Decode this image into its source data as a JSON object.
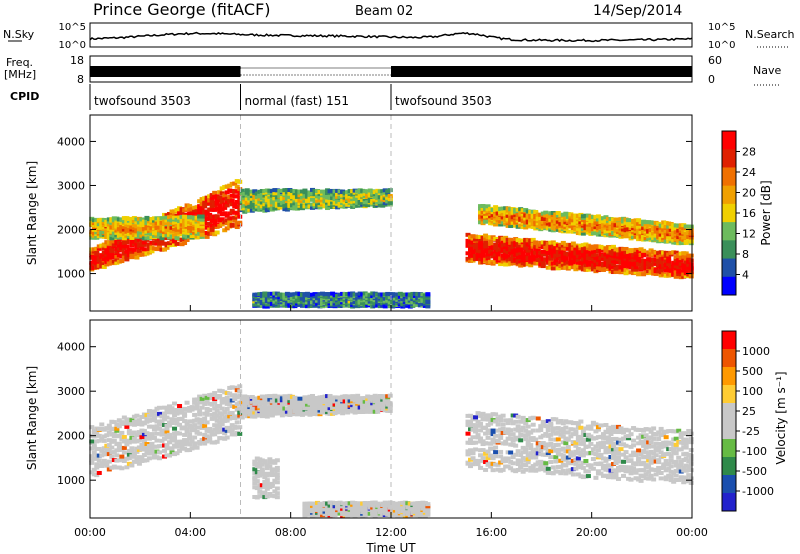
{
  "header": {
    "title": "Prince George (fitACF)",
    "beam": "Beam 02",
    "date": "14/Sep/2014"
  },
  "noise_panel": {
    "left_label": "N.Sky",
    "left_ticks": [
      "10^5",
      "10^0"
    ],
    "right_ticks": [
      "10^5",
      "10^0"
    ],
    "right_label": "N.Search"
  },
  "freq_panel": {
    "label_line1": "Freq.",
    "label_line2": "[MHz]",
    "left_ticks": [
      "18",
      "8"
    ],
    "right_ticks": [
      "60",
      "0"
    ],
    "right_label": "Nave"
  },
  "cpid": {
    "label": "CPID",
    "segments": [
      {
        "name": "twofsound 3503",
        "start_h": 0,
        "end_h": 6
      },
      {
        "name": "normal (fast) 151",
        "start_h": 6,
        "end_h": 12
      },
      {
        "name": "twofsound 3503",
        "start_h": 12,
        "end_h": 24
      }
    ]
  },
  "colors": {
    "power": [
      "#0000ff",
      "#1f50a8",
      "#3a8f5a",
      "#6dbb5e",
      "#f0d000",
      "#f0a000",
      "#f07000",
      "#e02000",
      "#ff0000"
    ],
    "velocity": [
      "#ff0000",
      "#ee5500",
      "#ff9900",
      "#ffcc33",
      "#c8c8c8",
      "#c8c8c8",
      "#66bb44",
      "#2f8a4a",
      "#1a4fae",
      "#2222cc"
    ],
    "ground_scatter": "#c8c8c8"
  },
  "chart_data": [
    {
      "type": "heatmap",
      "panel": "power",
      "ylabel": "Slant Range [km]",
      "xlabel": "",
      "xlim_h": [
        0,
        24
      ],
      "ylim": [
        150,
        4600
      ],
      "yticks": [
        1000,
        2000,
        3000,
        4000
      ],
      "colorbar": {
        "label": "Power [dB]",
        "range": [
          0,
          32
        ],
        "ticks": [
          "4",
          "8",
          "12",
          "16",
          "20",
          "24",
          "28"
        ]
      },
      "echo_bands": [
        {
          "start_h": 0.0,
          "end_h": 6.0,
          "r_start": [
            1050,
            1550
          ],
          "r_end": [
            2050,
            3150
          ],
          "level": 0.85
        },
        {
          "start_h": 0.0,
          "end_h": 4.5,
          "r_start": [
            1800,
            2250
          ],
          "r_end": [
            1800,
            2300
          ],
          "level": 0.5
        },
        {
          "start_h": 6.0,
          "end_h": 12.0,
          "r_start": [
            2400,
            2900
          ],
          "r_end": [
            2550,
            2900
          ],
          "level": 0.35
        },
        {
          "start_h": 15.0,
          "end_h": 24.0,
          "r_start": [
            1250,
            1900
          ],
          "r_end": [
            900,
            1450
          ],
          "level": 0.85
        },
        {
          "start_h": 15.5,
          "end_h": 24.0,
          "r_start": [
            2150,
            2550
          ],
          "r_end": [
            1650,
            2100
          ],
          "level": 0.55
        },
        {
          "start_h": 6.5,
          "end_h": 13.5,
          "r_start": [
            250,
            550
          ],
          "r_end": [
            250,
            550
          ],
          "level": 0.2
        }
      ]
    },
    {
      "type": "heatmap",
      "panel": "velocity",
      "ylabel": "Slant Range [km]",
      "xlabel": "Time UT",
      "xlim_h": [
        0,
        24
      ],
      "xtick_labels": [
        "00:00",
        "04:00",
        "08:00",
        "12:00",
        "16:00",
        "20:00",
        "00:00"
      ],
      "ylim": [
        150,
        4600
      ],
      "yticks": [
        1000,
        2000,
        3000,
        4000
      ],
      "colorbar": {
        "label": "Velocity [m s⁻¹]",
        "ticks": [
          "1000",
          "500",
          "100",
          "25",
          "-25",
          "-100",
          "-500",
          "-1000"
        ]
      },
      "echo_bands": [
        {
          "start_h": 0.0,
          "end_h": 6.0,
          "r_start": [
            1050,
            2200
          ],
          "r_end": [
            2000,
            3150
          ],
          "level": 0.5
        },
        {
          "start_h": 6.0,
          "end_h": 12.0,
          "r_start": [
            2400,
            2900
          ],
          "r_end": [
            2550,
            2900
          ],
          "level": 0.5
        },
        {
          "start_h": 15.0,
          "end_h": 24.0,
          "r_start": [
            1250,
            2550
          ],
          "r_end": [
            900,
            2100
          ],
          "level": 0.5
        },
        {
          "start_h": 6.5,
          "end_h": 7.5,
          "r_start": [
            600,
            1500
          ],
          "r_end": [
            600,
            1500
          ],
          "level": 0.1
        },
        {
          "start_h": 8.5,
          "end_h": 13.5,
          "r_start": [
            200,
            500
          ],
          "r_end": [
            200,
            500
          ],
          "level": 0.3
        }
      ]
    }
  ]
}
